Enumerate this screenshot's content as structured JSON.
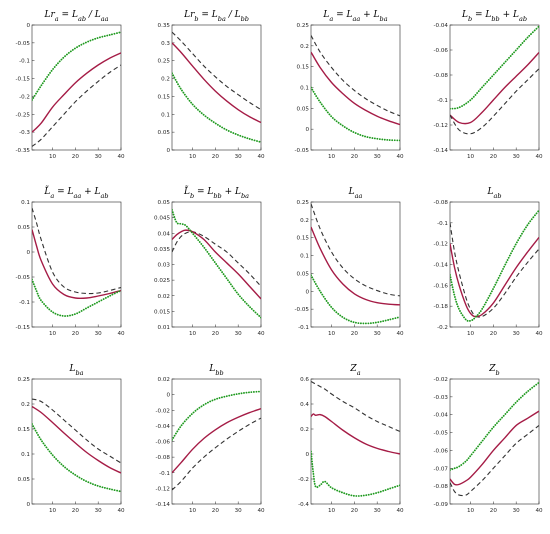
{
  "chart_data": [
    {
      "id": "p1",
      "type": "line",
      "title": "Lr_a = L_ab / L_aa",
      "x": [
        1,
        5,
        10,
        15,
        20,
        25,
        30,
        35,
        40
      ],
      "xlim": [
        1,
        40
      ],
      "xticks": [
        10,
        20,
        30,
        40
      ],
      "ylim": [
        -0.35,
        0
      ],
      "yticks": [
        -0.35,
        -0.3,
        -0.25,
        -0.2,
        -0.15,
        -0.1,
        -0.05,
        0
      ],
      "yticklabels": [
        "-0.35",
        "-0.3",
        "-0.25",
        "-0.2",
        "-0.15",
        "-0.1",
        "-0.05",
        "0"
      ],
      "series": [
        {
          "style": "dotted",
          "color": "#1f9a1f",
          "values": [
            -0.21,
            -0.17,
            -0.125,
            -0.09,
            -0.065,
            -0.048,
            -0.036,
            -0.028,
            -0.02
          ]
        },
        {
          "style": "solid",
          "color": "#a51c46",
          "values": [
            -0.3,
            -0.275,
            -0.23,
            -0.195,
            -0.162,
            -0.135,
            -0.112,
            -0.093,
            -0.078
          ]
        },
        {
          "style": "dashed",
          "color": "#333333",
          "values": [
            -0.34,
            -0.32,
            -0.285,
            -0.25,
            -0.215,
            -0.185,
            -0.158,
            -0.133,
            -0.112
          ]
        }
      ]
    },
    {
      "id": "p2",
      "type": "line",
      "title": "Lr_b = L_ba / L_bb",
      "x": [
        1,
        5,
        10,
        15,
        20,
        25,
        30,
        35,
        40
      ],
      "xlim": [
        1,
        40
      ],
      "xticks": [
        10,
        20,
        30,
        40
      ],
      "ylim": [
        0,
        0.35
      ],
      "yticks": [
        0,
        0.05,
        0.1,
        0.15,
        0.2,
        0.25,
        0.3,
        0.35
      ],
      "yticklabels": [
        "0",
        "0.05",
        "0.1",
        "0.15",
        "0.2",
        "0.25",
        "0.3",
        "0.35"
      ],
      "series": [
        {
          "style": "dashed",
          "color": "#333333",
          "values": [
            0.33,
            0.305,
            0.27,
            0.235,
            0.205,
            0.178,
            0.155,
            0.133,
            0.113
          ]
        },
        {
          "style": "solid",
          "color": "#a51c46",
          "values": [
            0.3,
            0.273,
            0.235,
            0.198,
            0.165,
            0.137,
            0.113,
            0.093,
            0.077
          ]
        },
        {
          "style": "dotted",
          "color": "#1f9a1f",
          "values": [
            0.215,
            0.17,
            0.128,
            0.098,
            0.075,
            0.056,
            0.042,
            0.031,
            0.022
          ]
        }
      ]
    },
    {
      "id": "p3",
      "type": "line",
      "title": "L_a = L_aa + L_ba",
      "x": [
        1,
        5,
        10,
        15,
        20,
        25,
        30,
        35,
        40
      ],
      "xlim": [
        1,
        40
      ],
      "xticks": [
        10,
        20,
        30,
        40
      ],
      "ylim": [
        -0.05,
        0.25
      ],
      "yticks": [
        -0.05,
        0,
        0.05,
        0.1,
        0.15,
        0.2,
        0.25
      ],
      "yticklabels": [
        "-0.05",
        "0",
        "0.05",
        "0.1",
        "0.15",
        "0.2",
        "0.25"
      ],
      "series": [
        {
          "style": "dashed",
          "color": "#333333",
          "values": [
            0.225,
            0.185,
            0.148,
            0.117,
            0.093,
            0.073,
            0.057,
            0.043,
            0.032
          ]
        },
        {
          "style": "solid",
          "color": "#a51c46",
          "values": [
            0.185,
            0.148,
            0.112,
            0.085,
            0.062,
            0.045,
            0.031,
            0.02,
            0.011
          ]
        },
        {
          "style": "dotted",
          "color": "#1f9a1f",
          "values": [
            0.1,
            0.065,
            0.03,
            0.008,
            -0.008,
            -0.018,
            -0.023,
            -0.026,
            -0.027
          ]
        }
      ]
    },
    {
      "id": "p4",
      "type": "line",
      "title": "L_b = L_bb + L_ab",
      "x": [
        1,
        5,
        10,
        15,
        20,
        25,
        30,
        35,
        40
      ],
      "xlim": [
        1,
        40
      ],
      "xticks": [
        10,
        20,
        30,
        40
      ],
      "ylim": [
        -0.14,
        -0.04
      ],
      "yticks": [
        -0.14,
        -0.12,
        -0.1,
        -0.08,
        -0.06,
        -0.04
      ],
      "yticklabels": [
        "-0.14",
        "-0.12",
        "-0.1",
        "-0.08",
        "-0.06",
        "-0.04"
      ],
      "series": [
        {
          "style": "dotted",
          "color": "#1f9a1f",
          "values": [
            -0.107,
            -0.106,
            -0.1,
            -0.09,
            -0.08,
            -0.07,
            -0.06,
            -0.05,
            -0.041
          ]
        },
        {
          "style": "solid",
          "color": "#a51c46",
          "values": [
            -0.112,
            -0.118,
            -0.118,
            -0.11,
            -0.1,
            -0.09,
            -0.081,
            -0.072,
            -0.062
          ]
        },
        {
          "style": "dashed",
          "color": "#333333",
          "values": [
            -0.112,
            -0.124,
            -0.127,
            -0.122,
            -0.113,
            -0.103,
            -0.093,
            -0.084,
            -0.075
          ]
        }
      ]
    },
    {
      "id": "p5",
      "type": "line",
      "title": "L̃_a = L_aa + L_ab",
      "x": [
        1,
        3,
        5,
        10,
        15,
        20,
        25,
        30,
        35,
        40
      ],
      "xlim": [
        1,
        40
      ],
      "xticks": [
        10,
        20,
        30,
        40
      ],
      "ylim": [
        -0.15,
        0.1
      ],
      "yticks": [
        -0.15,
        -0.1,
        -0.05,
        0,
        0.05,
        0.1
      ],
      "yticklabels": [
        "-0.15",
        "-0.1",
        "-0.05",
        "0",
        "0.05",
        "0.1"
      ],
      "series": [
        {
          "style": "dashed",
          "color": "#333333",
          "values": [
            0.088,
            0.058,
            0.025,
            -0.04,
            -0.07,
            -0.08,
            -0.083,
            -0.082,
            -0.077,
            -0.071
          ]
        },
        {
          "style": "solid",
          "color": "#a51c46",
          "values": [
            0.045,
            0.012,
            -0.017,
            -0.064,
            -0.085,
            -0.092,
            -0.092,
            -0.088,
            -0.083,
            -0.077
          ]
        },
        {
          "style": "dotted",
          "color": "#1f9a1f",
          "values": [
            -0.055,
            -0.078,
            -0.097,
            -0.12,
            -0.128,
            -0.124,
            -0.112,
            -0.1,
            -0.088,
            -0.077
          ]
        }
      ]
    },
    {
      "id": "p6",
      "type": "line",
      "title": "L̃_b = L_bb + L_ba",
      "x": [
        1,
        3,
        5,
        7,
        10,
        15,
        20,
        25,
        30,
        35,
        40
      ],
      "xlim": [
        1,
        40
      ],
      "xticks": [
        10,
        20,
        30,
        40
      ],
      "ylim": [
        0.01,
        0.05
      ],
      "yticks": [
        0.01,
        0.015,
        0.02,
        0.025,
        0.03,
        0.035,
        0.04,
        0.045,
        0.05
      ],
      "yticklabels": [
        "0.01",
        "0.015",
        "0.02",
        "0.025",
        "0.03",
        "0.035",
        "0.04",
        "0.045",
        "0.05"
      ],
      "series": [
        {
          "style": "dashed",
          "color": "#333333",
          "values": [
            0.034,
            0.037,
            0.039,
            0.04,
            0.0405,
            0.039,
            0.0365,
            0.034,
            0.0305,
            0.027,
            0.023
          ]
        },
        {
          "style": "solid",
          "color": "#a51c46",
          "values": [
            0.038,
            0.0395,
            0.0405,
            0.041,
            0.0405,
            0.038,
            0.034,
            0.0305,
            0.027,
            0.023,
            0.019
          ]
        },
        {
          "style": "dotted",
          "color": "#1f9a1f",
          "values": [
            0.0475,
            0.0435,
            0.043,
            0.0425,
            0.04,
            0.0355,
            0.0305,
            0.0255,
            0.0205,
            0.0165,
            0.013
          ]
        }
      ]
    },
    {
      "id": "p7",
      "type": "line",
      "title": "L_aa",
      "x": [
        1,
        5,
        10,
        15,
        20,
        25,
        30,
        35,
        40
      ],
      "xlim": [
        1,
        40
      ],
      "xticks": [
        10,
        20,
        30,
        40
      ],
      "ylim": [
        -0.1,
        0.25
      ],
      "yticks": [
        -0.1,
        -0.05,
        0,
        0.05,
        0.1,
        0.15,
        0.2,
        0.25
      ],
      "yticklabels": [
        "-0.1",
        "-0.05",
        "0",
        "0.05",
        "0.1",
        "0.15",
        "0.2",
        "0.25"
      ],
      "series": [
        {
          "style": "dashed",
          "color": "#333333",
          "values": [
            0.245,
            0.175,
            0.11,
            0.065,
            0.035,
            0.015,
            0.002,
            -0.008,
            -0.013
          ]
        },
        {
          "style": "solid",
          "color": "#a51c46",
          "values": [
            0.18,
            0.12,
            0.06,
            0.02,
            -0.007,
            -0.023,
            -0.032,
            -0.036,
            -0.038
          ]
        },
        {
          "style": "dotted",
          "color": "#1f9a1f",
          "values": [
            0.045,
            0,
            -0.045,
            -0.073,
            -0.087,
            -0.09,
            -0.087,
            -0.08,
            -0.072
          ]
        }
      ]
    },
    {
      "id": "p8",
      "type": "line",
      "title": "L_ab",
      "x": [
        1,
        3,
        5,
        8,
        10,
        12,
        15,
        20,
        25,
        30,
        35,
        40
      ],
      "xlim": [
        1,
        40
      ],
      "xticks": [
        10,
        20,
        30,
        40
      ],
      "ylim": [
        -0.2,
        -0.08
      ],
      "yticks": [
        -0.2,
        -0.18,
        -0.16,
        -0.14,
        -0.12,
        -0.1,
        -0.08
      ],
      "yticklabels": [
        "-0.2",
        "-0.18",
        "-0.16",
        "-0.14",
        "-0.12",
        "-0.1",
        "-0.08"
      ],
      "series": [
        {
          "style": "dashed",
          "color": "#333333",
          "values": [
            -0.1,
            -0.128,
            -0.148,
            -0.172,
            -0.183,
            -0.189,
            -0.19,
            -0.182,
            -0.168,
            -0.152,
            -0.138,
            -0.125
          ]
        },
        {
          "style": "solid",
          "color": "#a51c46",
          "values": [
            -0.12,
            -0.143,
            -0.16,
            -0.179,
            -0.187,
            -0.19,
            -0.188,
            -0.177,
            -0.16,
            -0.143,
            -0.128,
            -0.114
          ]
        },
        {
          "style": "dotted",
          "color": "#1f9a1f",
          "values": [
            -0.15,
            -0.17,
            -0.183,
            -0.193,
            -0.194,
            -0.191,
            -0.183,
            -0.163,
            -0.141,
            -0.12,
            -0.102,
            -0.088
          ]
        }
      ]
    },
    {
      "id": "p9",
      "type": "line",
      "title": "L_ba",
      "x": [
        1,
        5,
        10,
        15,
        20,
        25,
        30,
        35,
        40
      ],
      "xlim": [
        1,
        40
      ],
      "xticks": [
        10,
        20,
        30,
        40
      ],
      "ylim": [
        0,
        0.25
      ],
      "yticks": [
        0,
        0.05,
        0.1,
        0.15,
        0.2,
        0.25
      ],
      "yticklabels": [
        "0",
        "0.05",
        "0.1",
        "0.15",
        "0.2",
        "0.25"
      ],
      "series": [
        {
          "style": "dashed",
          "color": "#333333",
          "values": [
            0.21,
            0.205,
            0.188,
            0.168,
            0.148,
            0.128,
            0.11,
            0.096,
            0.082
          ]
        },
        {
          "style": "solid",
          "color": "#a51c46",
          "values": [
            0.195,
            0.183,
            0.163,
            0.142,
            0.122,
            0.103,
            0.087,
            0.073,
            0.062
          ]
        },
        {
          "style": "dotted",
          "color": "#1f9a1f",
          "values": [
            0.16,
            0.128,
            0.098,
            0.075,
            0.058,
            0.045,
            0.036,
            0.03,
            0.025
          ]
        }
      ]
    },
    {
      "id": "p10",
      "type": "line",
      "title": "L_bb",
      "x": [
        1,
        5,
        10,
        15,
        20,
        25,
        30,
        35,
        40
      ],
      "xlim": [
        1,
        40
      ],
      "xticks": [
        10,
        20,
        30,
        40
      ],
      "ylim": [
        -0.14,
        0.02
      ],
      "yticks": [
        -0.14,
        -0.12,
        -0.1,
        -0.08,
        -0.06,
        -0.04,
        -0.02,
        0,
        0.02
      ],
      "yticklabels": [
        "-0.14",
        "-0.12",
        "-0.1",
        "-0.08",
        "-0.06",
        "-0.04",
        "-0.02",
        "0",
        "0.02"
      ],
      "series": [
        {
          "style": "dotted",
          "color": "#1f9a1f",
          "values": [
            -0.058,
            -0.04,
            -0.024,
            -0.013,
            -0.006,
            -0.002,
            0.001,
            0.003,
            0.004
          ]
        },
        {
          "style": "solid",
          "color": "#a51c46",
          "values": [
            -0.1,
            -0.087,
            -0.07,
            -0.056,
            -0.045,
            -0.036,
            -0.029,
            -0.023,
            -0.018
          ]
        },
        {
          "style": "dashed",
          "color": "#333333",
          "values": [
            -0.122,
            -0.111,
            -0.094,
            -0.08,
            -0.068,
            -0.057,
            -0.047,
            -0.038,
            -0.03
          ]
        }
      ]
    },
    {
      "id": "p11",
      "type": "line",
      "title": "Z_a",
      "x": [
        1,
        2,
        3,
        5,
        7,
        10,
        15,
        20,
        25,
        30,
        35,
        40
      ],
      "xlim": [
        1,
        40
      ],
      "xticks": [
        10,
        20,
        30,
        40
      ],
      "ylim": [
        -0.4,
        0.6
      ],
      "yticks": [
        -0.4,
        -0.2,
        0,
        0.2,
        0.4,
        0.6
      ],
      "yticklabels": [
        "-0.4",
        "-0.2",
        "0",
        "0.2",
        "0.4",
        "0.6"
      ],
      "series": [
        {
          "style": "dashed",
          "color": "#333333",
          "values": [
            0.58,
            0.57,
            0.56,
            0.54,
            0.52,
            0.48,
            0.42,
            0.37,
            0.31,
            0.26,
            0.22,
            0.18
          ]
        },
        {
          "style": "solid",
          "color": "#a51c46",
          "values": [
            0.3,
            0.32,
            0.31,
            0.315,
            0.3,
            0.26,
            0.19,
            0.13,
            0.08,
            0.045,
            0.02,
            0.0
          ]
        },
        {
          "style": "dotted",
          "color": "#1f9a1f",
          "values": [
            0.02,
            -0.15,
            -0.26,
            -0.25,
            -0.22,
            -0.27,
            -0.31,
            -0.335,
            -0.33,
            -0.31,
            -0.28,
            -0.25
          ]
        }
      ]
    },
    {
      "id": "p12",
      "type": "line",
      "title": "Z_b",
      "x": [
        1,
        3,
        5,
        8,
        10,
        15,
        20,
        25,
        30,
        35,
        40
      ],
      "xlim": [
        1,
        40
      ],
      "xticks": [
        10,
        20,
        30,
        40
      ],
      "ylim": [
        -0.09,
        -0.02
      ],
      "yticks": [
        -0.09,
        -0.08,
        -0.07,
        -0.06,
        -0.05,
        -0.04,
        -0.03,
        -0.02
      ],
      "yticklabels": [
        "-0.09",
        "-0.08",
        "-0.07",
        "-0.06",
        "-0.05",
        "-0.04",
        "-0.03",
        "-0.02"
      ],
      "series": [
        {
          "style": "dotted",
          "color": "#1f9a1f",
          "values": [
            -0.071,
            -0.07,
            -0.069,
            -0.066,
            -0.063,
            -0.055,
            -0.047,
            -0.04,
            -0.033,
            -0.027,
            -0.022
          ]
        },
        {
          "style": "solid",
          "color": "#a51c46",
          "values": [
            -0.076,
            -0.079,
            -0.079,
            -0.077,
            -0.075,
            -0.068,
            -0.06,
            -0.053,
            -0.046,
            -0.042,
            -0.038
          ]
        },
        {
          "style": "dashed",
          "color": "#333333",
          "values": [
            -0.078,
            -0.083,
            -0.085,
            -0.085,
            -0.083,
            -0.077,
            -0.07,
            -0.063,
            -0.056,
            -0.051,
            -0.046
          ]
        }
      ]
    }
  ]
}
